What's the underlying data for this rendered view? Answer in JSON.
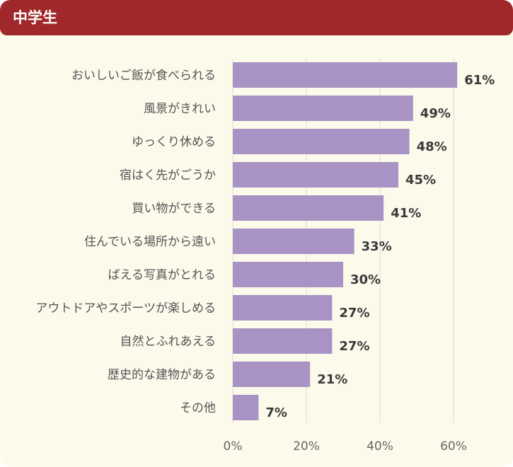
{
  "header": {
    "title": "中学生"
  },
  "colors": {
    "header": "#a0282a",
    "bar": "#a993c5",
    "background": "#fcfaeb",
    "grid": "#dcdcd2"
  },
  "chart_data": {
    "type": "bar",
    "orientation": "horizontal",
    "categories": [
      "おいしいご飯が食べられる",
      "風景がきれい",
      "ゆっくり休める",
      "宿はく先がごうか",
      "買い物ができる",
      "住んでいる場所から遠い",
      "ばえる写真がとれる",
      "アウトドアやスポーツが楽しめる",
      "自然とふれあえる",
      "歴史的な建物がある",
      "その他"
    ],
    "values": [
      61,
      49,
      48,
      45,
      41,
      33,
      30,
      27,
      27,
      21,
      7
    ],
    "value_labels": [
      "61%",
      "49%",
      "48%",
      "45%",
      "41%",
      "33%",
      "30%",
      "27%",
      "27%",
      "21%",
      "7%"
    ],
    "xlim": [
      0,
      60
    ],
    "xticks": [
      0,
      20,
      40,
      60
    ],
    "xtick_labels": [
      "0%",
      "20%",
      "40%",
      "60%"
    ],
    "grid": true
  }
}
